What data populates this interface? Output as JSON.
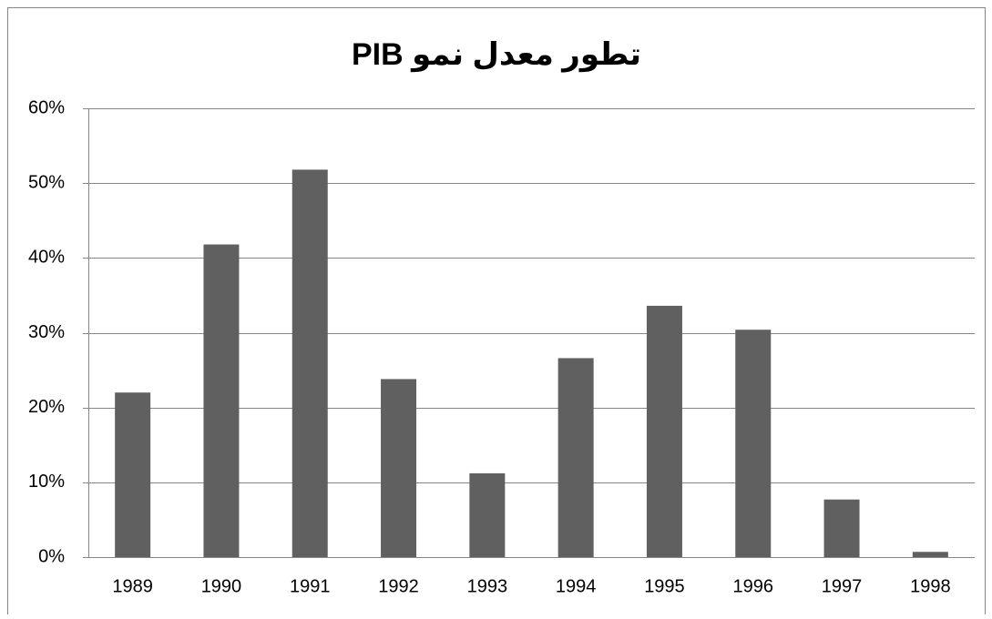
{
  "chart_data": {
    "type": "bar",
    "title": "تطور معدل نمو PIB",
    "categories": [
      "1989",
      "1990",
      "1991",
      "1992",
      "1993",
      "1994",
      "1995",
      "1996",
      "1997",
      "1998"
    ],
    "values": [
      22.0,
      41.8,
      51.8,
      23.8,
      11.2,
      26.6,
      33.6,
      30.4,
      7.7,
      0.7
    ],
    "color": "#606060",
    "ylim": [
      0,
      60
    ],
    "yticks": [
      {
        "value": 0,
        "label": "0%"
      },
      {
        "value": 10,
        "label": "10%"
      },
      {
        "value": 20,
        "label": "20%"
      },
      {
        "value": 30,
        "label": "30%"
      },
      {
        "value": 40,
        "label": "40%"
      },
      {
        "value": 50,
        "label": "50%"
      },
      {
        "value": 60,
        "label": "60%"
      }
    ],
    "grid": true
  }
}
